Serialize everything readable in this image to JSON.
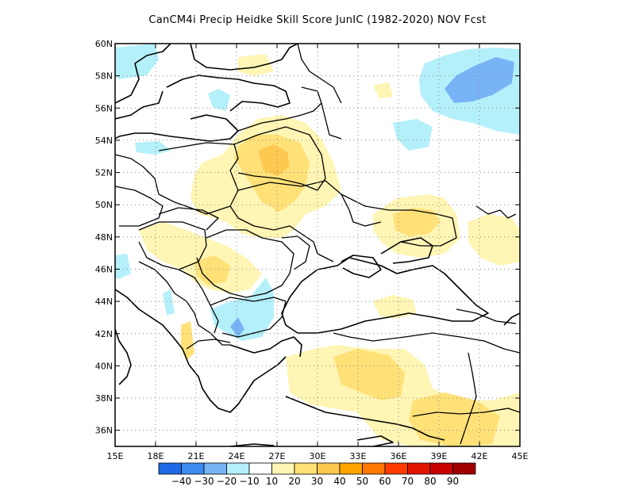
{
  "title": "CanCM4i Precip Heidke Skill Score JunIC (1982-2020) NOV Fcst",
  "map": {
    "lon_range": [
      15,
      45
    ],
    "lat_range": [
      35,
      60
    ],
    "lon_ticks": [
      15,
      18,
      21,
      24,
      27,
      30,
      33,
      36,
      39,
      42,
      45
    ],
    "lon_tick_labels": [
      "15E",
      "18E",
      "21E",
      "24E",
      "27E",
      "30E",
      "33E",
      "36E",
      "39E",
      "42E",
      "45E"
    ],
    "lat_ticks": [
      36,
      38,
      40,
      42,
      44,
      46,
      48,
      50,
      52,
      54,
      56,
      58,
      60
    ],
    "lat_tick_labels": [
      "36N",
      "38N",
      "40N",
      "42N",
      "44N",
      "46N",
      "48N",
      "50N",
      "52N",
      "54N",
      "56N",
      "58N",
      "60N"
    ],
    "grid": "dotted"
  },
  "colorbar": {
    "colors": [
      "#1e6ae6",
      "#3c8cf0",
      "#78b4f5",
      "#b4f0fa",
      "#ffffff",
      "#fff5b4",
      "#ffe178",
      "#ffc850",
      "#ffa500",
      "#ff7800",
      "#ff3c00",
      "#e11400",
      "#c80000",
      "#a00000"
    ],
    "labels": [
      "-40",
      "-30",
      "-20",
      "-10",
      "10",
      "20",
      "30",
      "40",
      "50",
      "60",
      "70",
      "80",
      "90"
    ]
  },
  "shading_legend": {
    "light_blue": "#b4f0fa",
    "mid_blue": "#78b4f5",
    "blue": "#3c8cf0",
    "light_yellow": "#fff5b4",
    "yellow": "#ffe178",
    "orange": "#ffc850",
    "dark_orange": "#ffa500"
  }
}
